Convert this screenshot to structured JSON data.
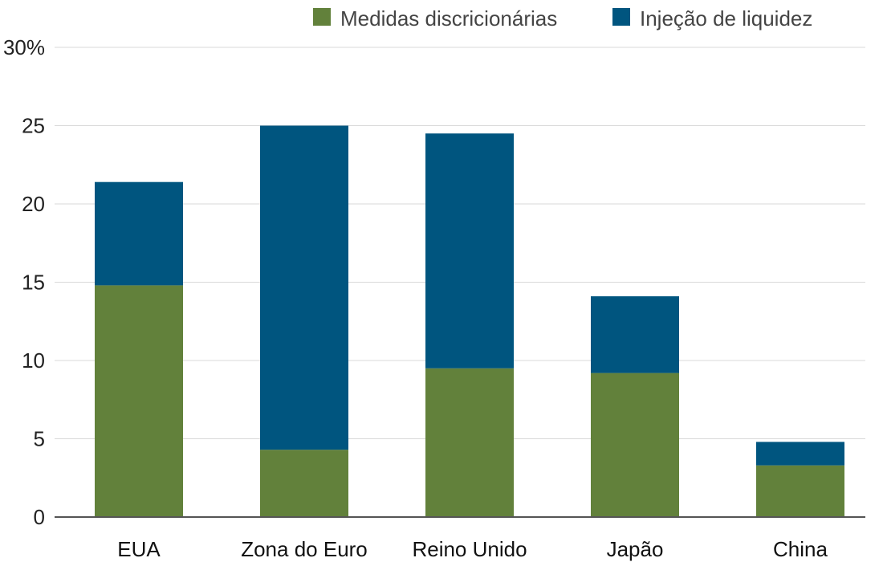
{
  "chart_data": {
    "type": "bar",
    "stacked": true,
    "categories": [
      "EUA",
      "Zona do Euro",
      "Reino Unido",
      "Japão",
      "China"
    ],
    "series": [
      {
        "name": "Medidas discricionárias",
        "color": "#62813b",
        "values": [
          14.8,
          4.3,
          9.5,
          9.2,
          3.3
        ]
      },
      {
        "name": "Injeção de liquidez",
        "color": "#00557f",
        "values": [
          6.6,
          20.7,
          15.0,
          4.9,
          1.5
        ]
      }
    ],
    "ylim": [
      0,
      30
    ],
    "yticks": [
      {
        "value": 0,
        "label": "0"
      },
      {
        "value": 5,
        "label": "5"
      },
      {
        "value": 10,
        "label": "10"
      },
      {
        "value": 15,
        "label": "15"
      },
      {
        "value": 20,
        "label": "20"
      },
      {
        "value": 25,
        "label": "25"
      },
      {
        "value": 30,
        "label": "30%"
      }
    ],
    "grid": true,
    "legend_position": "top-right",
    "title": "",
    "xlabel": "",
    "ylabel": ""
  }
}
